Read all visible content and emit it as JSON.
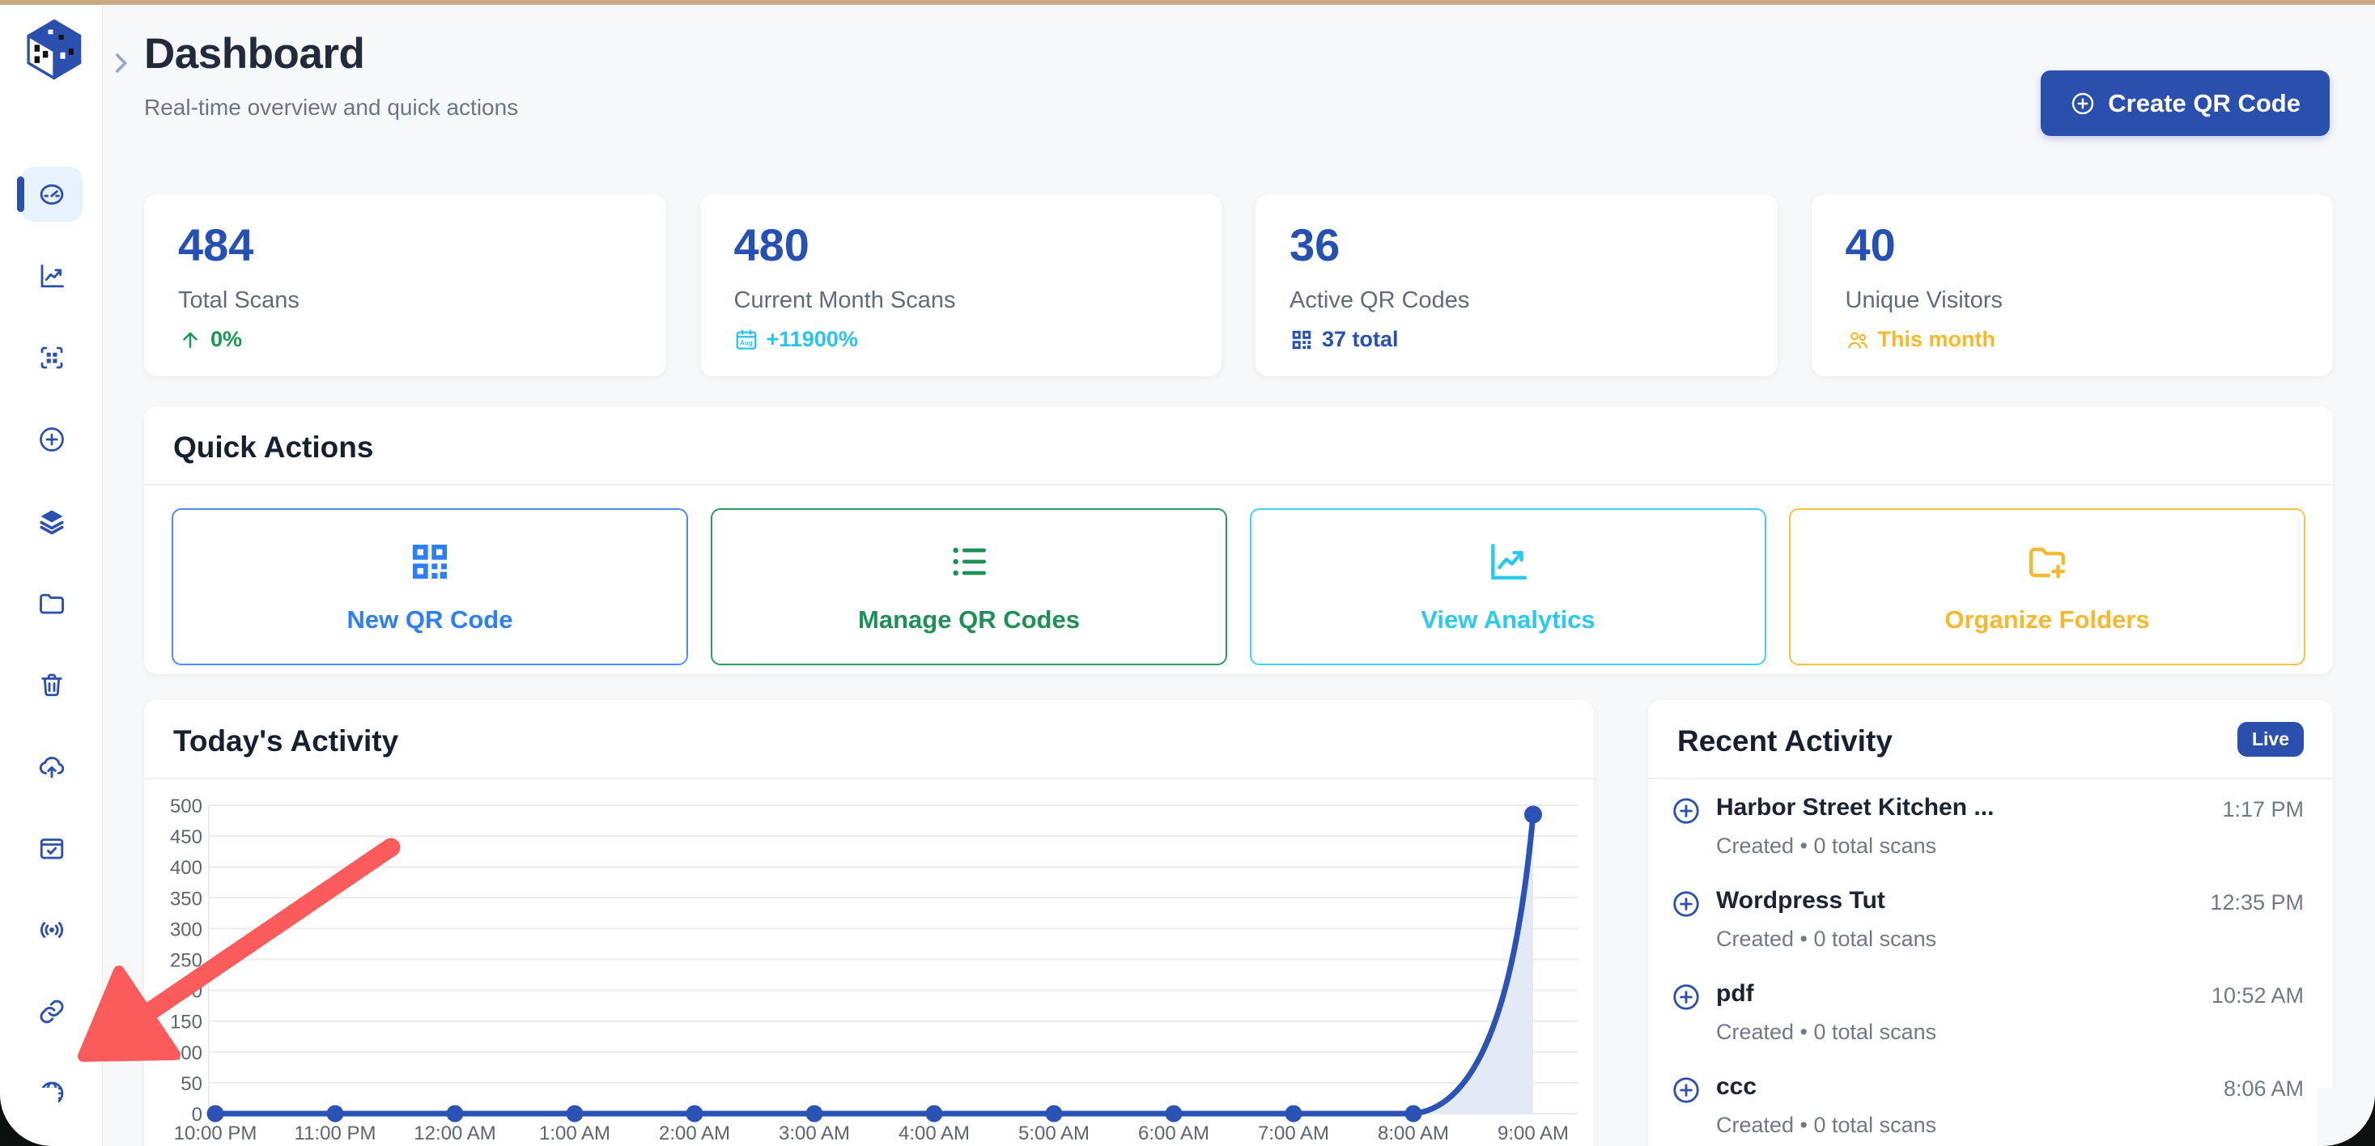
{
  "app": {
    "top_strip_color": "#c8ab82",
    "background": "#f7f8fa",
    "primary_blue": "#2b4fad"
  },
  "sidebar": {
    "active_item": "gauge-icon",
    "icons": [
      "gauge-icon",
      "line-chart-icon",
      "qr-scan-icon",
      "plus-circle-icon",
      "layers-icon",
      "folder-icon",
      "trash-icon",
      "cloud-upload-icon",
      "calendar-check-icon",
      "broadcast-icon",
      "link-icon",
      "globe-icon"
    ]
  },
  "header": {
    "title": "Dashboard",
    "subtitle": "Real-time overview and quick actions",
    "create_button_label": "Create QR Code"
  },
  "stats": [
    {
      "value": "484",
      "label": "Total Scans",
      "sub": "0%",
      "icon": "arrow-up-icon",
      "color": "#169a51"
    },
    {
      "value": "480",
      "label": "Current Month Scans",
      "sub": "+11900%",
      "icon": "calendar-icon",
      "icon_text": "Aug",
      "color": "#29c3ef"
    },
    {
      "value": "36",
      "label": "Active QR Codes",
      "sub": "37 total",
      "icon": "qr-code-icon",
      "color": "#2750b4"
    },
    {
      "value": "40",
      "label": "Unique Visitors",
      "sub": "This month",
      "icon": "people-icon",
      "color": "#f5b929"
    }
  ],
  "quick_actions": {
    "title": "Quick Actions",
    "actions": [
      {
        "label": "New QR Code",
        "icon": "qr-code-icon",
        "color": "#2e7ef8"
      },
      {
        "label": "Manage QR Codes",
        "icon": "list-icon",
        "color": "#1d9155"
      },
      {
        "label": "View Analytics",
        "icon": "line-chart-icon",
        "color": "#2bc8f0"
      },
      {
        "label": "Organize Folders",
        "icon": "folder-plus-icon",
        "color": "#f5b82e"
      }
    ]
  },
  "chart_data": {
    "type": "line",
    "title": "Today's Activity",
    "x": [
      "10:00 PM",
      "11:00 PM",
      "12:00 AM",
      "1:00 AM",
      "2:00 AM",
      "3:00 AM",
      "4:00 AM",
      "5:00 AM",
      "6:00 AM",
      "7:00 AM",
      "8:00 AM",
      "9:00 AM"
    ],
    "values": [
      0,
      0,
      0,
      0,
      0,
      0,
      0,
      0,
      0,
      0,
      0,
      485
    ],
    "ylim": [
      0,
      500
    ],
    "yticks": [
      0,
      50,
      100,
      150,
      200,
      250,
      300,
      350,
      400,
      450,
      500
    ],
    "grid": true,
    "legend": false,
    "line_color": "#2b52b5",
    "point_color": "#2b52b5",
    "fill_color": "#e3e9f5"
  },
  "recent_activity": {
    "title": "Recent Activity",
    "badge": "Live",
    "badge_color": "#2b4fad",
    "items": [
      {
        "title": "Harbor Street Kitchen ...",
        "time": "1:17 PM",
        "detail": "Created • 0 total scans"
      },
      {
        "title": "Wordpress Tut",
        "time": "12:35 PM",
        "detail": "Created • 0 total scans"
      },
      {
        "title": "pdf",
        "time": "10:52 AM",
        "detail": "Created • 0 total scans"
      },
      {
        "title": "ccc",
        "time": "8:06 AM",
        "detail": "Created • 0 total scans"
      }
    ]
  },
  "annotation": {
    "type": "arrow",
    "color": "#fb5b5b"
  }
}
